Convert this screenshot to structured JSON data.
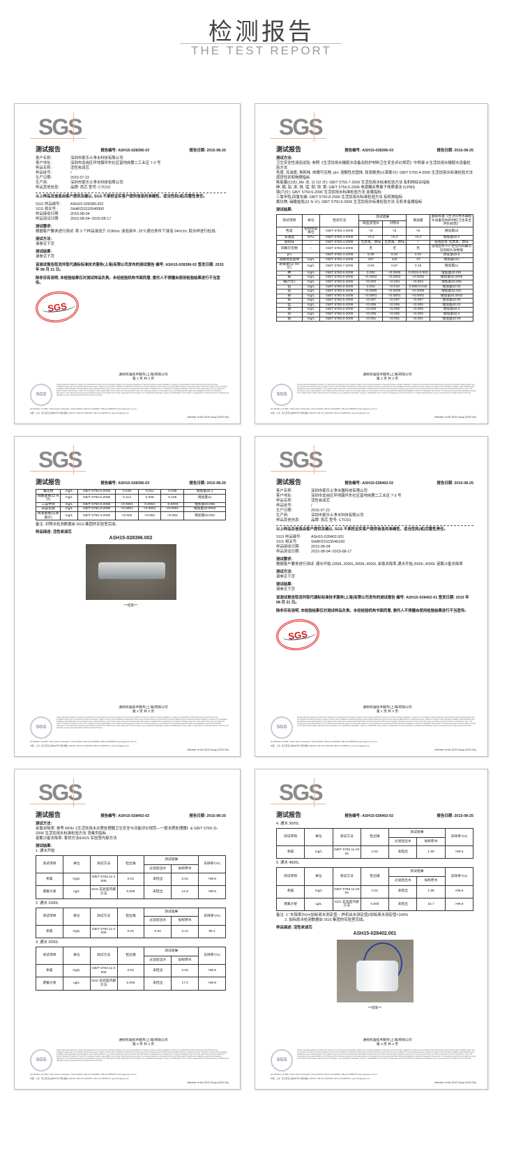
{
  "header": {
    "title": "检测报告",
    "subtitle": "THE TEST REPORT"
  },
  "common": {
    "logo": "SGS",
    "doc_title": "测试报告",
    "company_footer": "通标标准技术服务(上海)有限公司",
    "seal_text": "SGS",
    "disclaimer": "Unless otherwise agreed in writing, this document is issued by the Company subject to its General Conditions of Service printed overleaf, available on request or accessible at http://www.sgs.com/en/Terms-and-Conditions.aspx and, for electronic format documents, subject to Terms and Conditions for Electronic Documents at http://www.sgs.com/en/Terms-and-Conditions/Terms-e-Document.aspx. Attention is drawn to the limitation of liability, indemnification and jurisdiction issues defined therein. Any holder of this document is advised that information contained hereon reflects the Company's findings at the time of its intervention only and within the limits of Client's instructions, if any. The Company's sole responsibility is to its Client and this document does not exonerate parties to a transaction from exercising all their rights and obligations under the transaction documents. This document cannot be reproduced except in full, without prior written approval of the Company. Any unauthorized alteration, forgery or falsification of the content or appearance of this document is unlawful and offenders may be prosecuted to the fullest extent of the law.",
    "address_en": "3rd Building, No.889, Yishan Road, Shanghai, China 200233   t (86-21) 61402666   f (86-21) 64953679   www.sgsgroup.com.cn",
    "address_cn": "中国 · 上海 · 徐汇区宜山路889号3号楼   邮编: 200233   t (86-21) 61402666   f (86-21) 64953679   e sgs.china@sgs.com",
    "member": "Member of the SGS Group (SGS SA)"
  },
  "pages": [
    {
      "report_no": "报告编号: ASH15-028396-03",
      "report_date": "报告日期: 2015-08-25",
      "page_label": "第 1 页 共 3 页",
      "blocks": [
        {
          "type": "info",
          "rows": [
            [
              "客户名称:",
              "深圳市家乐士净水科技有限公司"
            ],
            [
              "客户地址:",
              "深圳市龙岗区坪地镇坪东社区富地岗第二工业区 7-3 号"
            ],
            [
              "样品名称:",
              "活性炭滤芯"
            ],
            [
              "样品批号:",
              "/"
            ],
            [
              "生产日期:",
              "2015.07.22"
            ],
            [
              "生产商:",
              "深圳市家乐士净水科技有限公司"
            ],
            [
              "样品其他信息:",
              "品牌: 良芯 型号: CTO10"
            ]
          ]
        },
        {
          "type": "rule"
        },
        {
          "type": "bold",
          "text": "以上样品及信息由客户提供及确认, SGS 不承担证实客户提供信息的准确性、适当性和(或)完整性责任。"
        },
        {
          "type": "gap"
        },
        {
          "type": "info",
          "rows": [
            [
              "SGS 样品编号:",
              "ASH15-028396.002"
            ],
            [
              "SGS 相关号:",
              "SHAFD1515546900"
            ],
            [
              "样品接收日期:",
              "2015-08-04"
            ],
            [
              "样品测试日期:",
              "2015-08-04~2015-08-17"
            ]
          ]
        },
        {
          "type": "head",
          "text": "测试要求:"
        },
        {
          "type": "text",
          "text": "根据客户要求进行测试: 将 3 个样品浸泡于 2190mL 浸泡液中, 25℃避光条件下浸泡 24h±1h, 取水样进行检测。"
        },
        {
          "type": "head",
          "text": "测试方法:"
        },
        {
          "type": "text",
          "text": "请参见下页"
        },
        {
          "type": "head",
          "text": "测试结果:"
        },
        {
          "type": "text",
          "text": "请参见下页"
        },
        {
          "type": "gap"
        },
        {
          "type": "bold",
          "text": "该测试报告取消并取代通标标准技术服务(上海)有限公司发布的测试报告 编号: ASH15-028396-02 签发日期: 2015 年 08 月 21 日。"
        },
        {
          "type": "gap"
        },
        {
          "type": "bold",
          "text": "除非另有说明, 本检验结果仅对测试样品负责。未经检验机构书面同意, 委托人不得擅自使用检验结果进行不当宣传。"
        },
        {
          "type": "stamp"
        }
      ]
    },
    {
      "report_no": "报告编号: ASH15-028396-03",
      "report_date": "报告日期: 2015-08-25",
      "page_label": "第 2 页 共 3 页",
      "blocks": [
        {
          "type": "head",
          "text": "测试方法:"
        },
        {
          "type": "text",
          "text": "卫生安全性浸泡试验: 参照《生活饮用水输配水设备及防护材料卫生安全评价规范》中附录 A 生活饮用水输配水设备检验方法"
        },
        {
          "type": "text",
          "text": "色度, 浑浊度, 臭和味, 肉眼可见物, pH, 溶解性总固体, 挥发酚类(以苯酚计): GB/T 5750.4-2006 生活饮用水标准检验方法 感官性状和物理指标"
        },
        {
          "type": "text",
          "text": "耗氧量(COD_Mn 法, 以 O2 计): GB/T 5750.7-2006 生活饮用水标准检验方法 有机物综合指标"
        },
        {
          "type": "text",
          "text": "砷, 镉, 铅, 汞, 铁, 锰, 铜, 锌, 钡: GB/T 5750.6-2006 电感耦合等离子体质谱法 ICPMS"
        },
        {
          "type": "text",
          "text": "铬(六价): GB/T 5750.6-2006 生活饮用水标准检验方法 金属指标"
        },
        {
          "type": "text",
          "text": "三氯甲烷,四氯化碳: GB/T 5750.8-2006 生活饮用水标准检验方法 有机物指标"
        },
        {
          "type": "text",
          "text": "氟化物, 硝酸盐氮(以 N 计): GB/T 5750.5-2006 生活饮用水标准检验方法 无机非金属指标"
        },
        {
          "type": "head",
          "text": "测试结果:"
        },
        {
          "type": "table",
          "cls": "",
          "header": [
            [
              [
                "测试项目",
                1,
                2
              ],
              [
                "单位",
                1,
                2
              ],
              [
                "检测方法",
                1,
                2
              ],
              [
                "测试结果",
                2,
                1
              ],
              [
                "增加量",
                1,
                2
              ],
              [
                "国家标准《生活饮用水输配水设备及防护材料卫生安全评价规范》",
                1,
                2
              ]
            ],
            [
              [
                "样品浸泡水",
                1,
                1
              ],
              [
                "对照水",
                1,
                1
              ]
            ]
          ],
          "rows": [
            [
              "色度",
              "铂钴色度单位",
              "GB/T 5750.4-2006",
              "<5",
              "<5",
              "<5",
              "增加量≤5"
            ],
            [
              "浑浊度",
              "NTU",
              "GB/T 5750.4-2006",
              "<0.2",
              "<0.2",
              "<0.2",
              "增加量≤0.2"
            ],
            [
              "臭和味",
              "--",
              "GB/T 5750.4-2006",
              "无异臭、异味",
              "无异臭、异味",
              "/",
              "浸泡后水 无异臭、异味"
            ],
            [
              "肉眼可见物",
              "--",
              "GB/T 5750.4-2006",
              "无",
              "无",
              "无",
              "浸泡后水不产生任何肉眼可见的碎片杂物等"
            ],
            [
              "pH",
              "",
              "GB/T 5750.4-2006",
              "8.38",
              "8.34",
              "0.04",
              "改变量≤0.5"
            ],
            [
              "溶解性总固体",
              "mg/L",
              "GB/T 5750.4-2006",
              "207",
              "234",
              "-27",
              "增加量≤10"
            ],
            [
              "耗氧量(以 O2 计)",
              "mg/L",
              "GB/T 5750.7-2006",
              "0.83",
              "0.67",
              "0.16",
              "增加量≤1"
            ],
            [
              "砷",
              "mg/L",
              "GB/T 5750.6-2006",
              "0.002",
              "<0.0005",
              "0.0015-0.002",
              "增加量≤0.001"
            ],
            [
              "镉",
              "mg/L",
              "GB/T 5750.6-2006",
              "<0.0002",
              "<0.0002",
              "<0.0002",
              "增加量≤0.0005"
            ],
            [
              "铬(六价)",
              "mg/L",
              "GB/T 5750.6-2006",
              "<0.004",
              "<0.004",
              "<0.004",
              "增加量≤0.005"
            ],
            [
              "铝",
              "mg/L",
              "GB/T 5750.6-2006",
              "0.016",
              "<0.010",
              "0.006-0.016",
              "增加量≤0.02"
            ],
            [
              "铅",
              "mg/L",
              "GB/T 5750.6-2006",
              "<0.0005",
              "<0.0005",
              "<0.0005",
              "增加量≤0.001"
            ],
            [
              "汞",
              "mg/L",
              "GB/T 5750.6-2006",
              "<0.0001",
              "<0.0001",
              "<0.0001",
              "增加量≤0.0002"
            ],
            [
              "铁",
              "mg/L",
              "GB/T 5750.6-2006",
              "<0.007",
              "<0.007",
              "<0.007",
              "增加量≤0.06"
            ],
            [
              "锰",
              "mg/L",
              "GB/T 5750.6-2006",
              "<0.005",
              "<0.005",
              "<0.005",
              "增加量≤0.02"
            ],
            [
              "铜",
              "mg/L",
              "GB/T 5750.6-2006",
              "<0.006",
              "<0.006",
              "<0.006",
              "增加量≤0.2"
            ],
            [
              "锌",
              "mg/L",
              "GB/T 5750.6-2006",
              "<0.005",
              "<0.005",
              "<0.005",
              "增加量≤0.2"
            ],
            [
              "钡",
              "mg/L",
              "GB/T 5750.6-2006",
              "<0.001",
              "<0.001",
              "<0.001",
              "增加量≤0.05"
            ]
          ]
        }
      ]
    },
    {
      "report_no": "报告编号: ASH15-028396-03",
      "report_date": "报告日期: 2015-08-25",
      "page_label": "第 3 页 共 3 页",
      "blocks": [
        {
          "type": "table",
          "cls": "",
          "header": [],
          "rows": [
            [
              "氟化物",
              "mg/L",
              "GB/T 5750.5-2006",
              "0.049",
              "0.011",
              "0.038",
              "增加量≤0.1"
            ],
            [
              "硝酸盐氮(以 N 计)",
              "mg/L",
              "GB/T 5750.5-2006",
              "0.114",
              "0.008",
              "0.106",
              "增加量≤1"
            ],
            [
              "三氯甲烷",
              "mg/L",
              "GB/T 5750.8-2006",
              "<0.0001",
              "0.0004",
              "-0.0003",
              "增加量≤0.006"
            ],
            [
              "四氯化碳",
              "mg/L",
              "GB/T 5750.8-2006",
              "<0.0001",
              "<0.0001",
              "<0.0001",
              "增加量≤0.0002"
            ],
            [
              "挥发酚类(以苯酚计)",
              "mg/L",
              "GB/T 5750.4-2006",
              "<0.002",
              "<0.002",
              "<0.002",
              "增加量≤0.002"
            ]
          ]
        },
        {
          "type": "text",
          "text": "备注: 对照水检测数据由 SGS 集团的实验室完成。"
        },
        {
          "type": "head",
          "text": "样品描述: 活性炭滤芯"
        },
        {
          "type": "photo",
          "kind": "cartridge",
          "label": "ASH15-028396.002",
          "caption": "***结束***"
        }
      ]
    },
    {
      "report_no": "报告编号: ASH15-028402-02",
      "report_date": "报告日期: 2015-08-25",
      "page_label": "第 1 页 共 3 页",
      "blocks": [
        {
          "type": "info",
          "rows": [
            [
              "客户名称:",
              "深圳市家乐士净水器科技有限公司"
            ],
            [
              "客户地址:",
              "深圳市龙岗区坪地镇坪东社区富地岗第二工业区 7-3 号"
            ],
            [
              "样品名称:",
              "活性炭滤芯"
            ],
            [
              "样品批号:",
              "/"
            ],
            [
              "生产日期:",
              "2015.07.22"
            ],
            [
              "生产商:",
              "深圳市家乐士净水科技有限公司"
            ],
            [
              "样品其他信息:",
              "品牌: 良芯 型号: CTO10"
            ]
          ]
        },
        {
          "type": "rule"
        },
        {
          "type": "bold",
          "text": "以上样品及信息由客户提供及确认, SGS 不承担证实客户提供信息的准确性、适当性和(或)完整性责任。"
        },
        {
          "type": "gap"
        },
        {
          "type": "info",
          "rows": [
            [
              "SGS 样品编号:",
              "ASH15-028402.001"
            ],
            [
              "SGS 相关号:",
              "SHAFD1515546100"
            ],
            [
              "样品接收日期:",
              "2015-08-04"
            ],
            [
              "样品测试日期:",
              "2015-08-04~2015-08-17"
            ]
          ]
        },
        {
          "type": "head",
          "text": "测试要求:"
        },
        {
          "type": "text",
          "text": "根据客户要求进行测试: 通水开始,1000L,2000L,3000L,4000L 余氯去除率,通水开始,2000L,4000L 诺氟沙星去除率"
        },
        {
          "type": "head",
          "text": "测试方法:"
        },
        {
          "type": "text",
          "text": "请参见下页"
        },
        {
          "type": "head",
          "text": "测试结果:"
        },
        {
          "type": "text",
          "text": "请参见下页"
        },
        {
          "type": "gap"
        },
        {
          "type": "bold",
          "text": "该测试报告取消并取代通标标准技术服务(上海)有限公司发布的测试报告 编号: ASH15-028402-01 签发日期: 2015 年 08 月 21 日。"
        },
        {
          "type": "gap"
        },
        {
          "type": "bold",
          "text": "除非另有说明, 本检验结果仅对测试样品负责。未经检验机构书面同意, 委托人不得擅自使用检验结果进行不当宣传。"
        },
        {
          "type": "stamp"
        }
      ]
    },
    {
      "report_no": "报告编号: ASH15-028402-02",
      "report_date": "报告日期: 2015-08-25",
      "page_label": "第 2 页 共 3 页",
      "blocks": [
        {
          "type": "head",
          "text": "测试方法:"
        },
        {
          "type": "text",
          "text": "余氯去除率: 参考 MOH《生活饮用水水质处理器卫生安全与功能评价规范—一般水质处理器》& GB/T 5750.11-2006 生活饮用水标准检验方法 消毒剂指标"
        },
        {
          "type": "text",
          "text": "诺氟沙星去除率: 客供方法&SGS 实验室内部方法"
        },
        {
          "type": "head",
          "text": "测试结果:"
        },
        {
          "type": "text",
          "text": "1. 通水开始"
        },
        {
          "type": "table",
          "cls": "tbl5",
          "header": "removal",
          "rows": [
            [
              "余氯",
              "mg/L",
              "GB/T 5750.11-2006",
              "0.01",
              "未检出",
              "2.02",
              ">99.5"
            ],
            [
              "诺氟沙星",
              "ug/L",
              "SGS 实验室内部方法",
              "0.005",
              "未检出",
              "14.9",
              ">99.9"
            ]
          ]
        },
        {
          "type": "text",
          "text": "2. 通水 1000L"
        },
        {
          "type": "table",
          "cls": "tbl5",
          "header": "removal",
          "rows": [
            [
              "余氯",
              "mg/L",
              "GB/T 5750.11-2006",
              "0.01",
              "0.02",
              "2.14",
              "99.1"
            ]
          ]
        },
        {
          "type": "text",
          "text": "3. 通水 2000L"
        },
        {
          "type": "table",
          "cls": "tbl5",
          "header": "removal",
          "rows": [
            [
              "余氯",
              "mg/L",
              "GB/T 5750.11-2006",
              "0.01",
              "未检出",
              "2.03",
              ">99.5"
            ],
            [
              "诺氟沙星",
              "ug/L",
              "SGS 实验室内部方法",
              "0.005",
              "未检出",
              "17.0",
              ">99.9"
            ]
          ]
        }
      ]
    },
    {
      "report_no": "报告编号: ASH15-028402-02",
      "report_date": "报告日期: 2015-08-25",
      "page_label": "第 3 页 共 3 页",
      "blocks": [
        {
          "type": "text",
          "text": "4. 通水 3000L"
        },
        {
          "type": "table",
          "cls": "tbl5",
          "header": "removal",
          "rows": [
            [
              "余氯",
              "mg/L",
              "GB/T 5750.11-2006",
              "0.01",
              "未检出",
              "1.99",
              ">99.5"
            ]
          ]
        },
        {
          "type": "text",
          "text": "5. 通水 4000L"
        },
        {
          "type": "table",
          "cls": "tbl5",
          "header": "removal",
          "rows": [
            [
              "余氯",
              "mg/L",
              "GB/T 5750.11-2006",
              "0.01",
              "未检出",
              "1.98",
              ">99.5"
            ],
            [
              "诺氟沙星",
              "ug/L",
              "SGS 实验室内部方法",
              "0.005",
              "未检出",
              "15.7",
              ">99.9"
            ]
          ]
        },
        {
          "type": "text",
          "text": "备注: 1.\"去除率(%)=(加标原水测定值 − 样机出水测定值)/加标原水测定值×100%"
        },
        {
          "type": "text",
          "text": "　　 2. 加标原水检测数据由 SGS 集团的实验室完成。"
        },
        {
          "type": "head",
          "text": "样品描述: 活性炭滤芯"
        },
        {
          "type": "photo",
          "kind": "housing",
          "label": "ASH15-028402.001",
          "caption": "***结束***"
        }
      ]
    }
  ],
  "removal_header": [
    [
      [
        "测试项目",
        1,
        2
      ],
      [
        "单位",
        1,
        2
      ],
      [
        "测试方法",
        1,
        2
      ],
      [
        "检出限",
        1,
        2
      ],
      [
        "测试结果",
        2,
        1
      ],
      [
        "去除率*(%)",
        1,
        2
      ]
    ],
    [
      [
        "过滤后出水",
        1,
        1
      ],
      [
        "加标原水",
        1,
        1
      ]
    ]
  ]
}
